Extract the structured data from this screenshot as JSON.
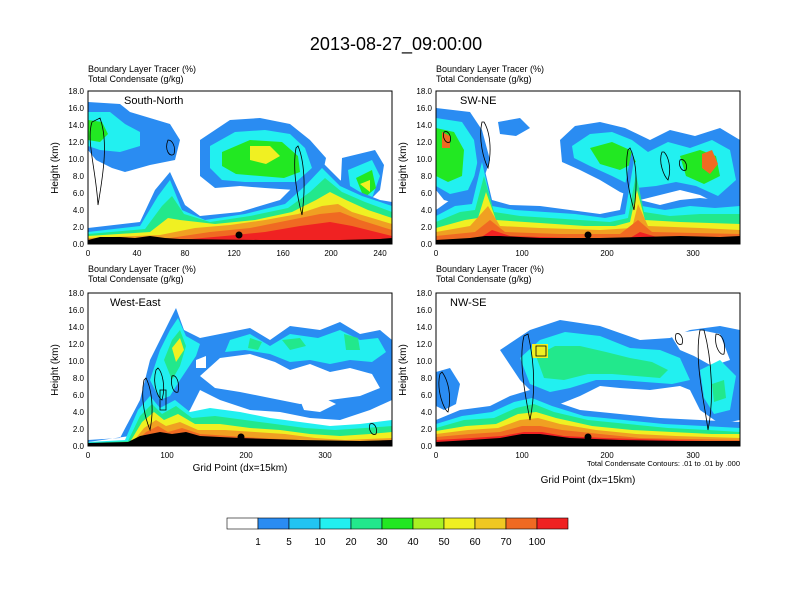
{
  "title": "2013-08-27_09:00:00",
  "chart_data": [
    {
      "type": "heatmap",
      "panel_label": "South-North",
      "header_lines": [
        "Boundary Layer Tracer   (%)",
        "Total Condensate   (g/kg)"
      ],
      "xlabel": "",
      "ylabel": "Height (km)",
      "xlim": [
        0,
        250
      ],
      "ylim": [
        0,
        18
      ],
      "xticks": [
        "0",
        "40",
        "80",
        "120",
        "160",
        "200",
        "240"
      ],
      "xtick_values": [
        0,
        40,
        80,
        120,
        160,
        200,
        240
      ],
      "yticks": [
        "0.0",
        "2.0",
        "4.0",
        "6.0",
        "8.0",
        "10.0",
        "12.0",
        "14.0",
        "16.0",
        "18.0"
      ],
      "marker_x": 124,
      "footnote": ""
    },
    {
      "type": "heatmap",
      "panel_label": "SW-NE",
      "header_lines": [
        "Boundary Layer Tracer   (%)",
        "Total Condensate   (g/kg)"
      ],
      "xlabel": "",
      "ylabel": "Height (km)",
      "xlim": [
        0,
        355
      ],
      "ylim": [
        0,
        18
      ],
      "xticks": [
        "0",
        "100",
        "200",
        "300"
      ],
      "xtick_values": [
        0,
        100,
        200,
        300
      ],
      "yticks": [
        "0.0",
        "2.0",
        "4.0",
        "6.0",
        "8.0",
        "10.0",
        "12.0",
        "14.0",
        "16.0",
        "18.0"
      ],
      "marker_x": 177,
      "footnote": ""
    },
    {
      "type": "heatmap",
      "panel_label": "West-East",
      "header_lines": [
        "Boundary Layer Tracer   (%)",
        "Total Condensate   (g/kg)"
      ],
      "xlabel": "Grid Point (dx=15km)",
      "ylabel": "Height (km)",
      "xlim": [
        0,
        385
      ],
      "ylim": [
        0,
        18
      ],
      "xticks": [
        "0",
        "100",
        "200",
        "300"
      ],
      "xtick_values": [
        0,
        100,
        200,
        300
      ],
      "yticks": [
        "0.0",
        "2.0",
        "4.0",
        "6.0",
        "8.0",
        "10.0",
        "12.0",
        "14.0",
        "16.0",
        "18.0"
      ],
      "marker_x": 193,
      "footnote": ""
    },
    {
      "type": "heatmap",
      "panel_label": "NW-SE",
      "header_lines": [
        "Boundary Layer Tracer   (%)",
        "Total Condensate   (g/kg)"
      ],
      "xlabel": "Grid Point (dx=15km)",
      "ylabel": "Height (km)",
      "xlim": [
        0,
        355
      ],
      "ylim": [
        0,
        18
      ],
      "xticks": [
        "0",
        "100",
        "200",
        "300"
      ],
      "xtick_values": [
        0,
        100,
        200,
        300
      ],
      "yticks": [
        "0.0",
        "2.0",
        "4.0",
        "6.0",
        "8.0",
        "10.0",
        "12.0",
        "14.0",
        "16.0",
        "18.0"
      ],
      "marker_x": 177,
      "footnote": "Total Condensate Contours: .01 to .01 by .000"
    }
  ],
  "colorbar": {
    "labels": [
      "1",
      "5",
      "10",
      "20",
      "30",
      "40",
      "50",
      "60",
      "70",
      "100"
    ],
    "colors": [
      "#ffffff",
      "#2a8cf2",
      "#22c4f2",
      "#22f0f0",
      "#22e88c",
      "#22e822",
      "#aaf022",
      "#f0f022",
      "#f0c822",
      "#f0a022",
      "#f06a22",
      "#f02222"
    ]
  }
}
